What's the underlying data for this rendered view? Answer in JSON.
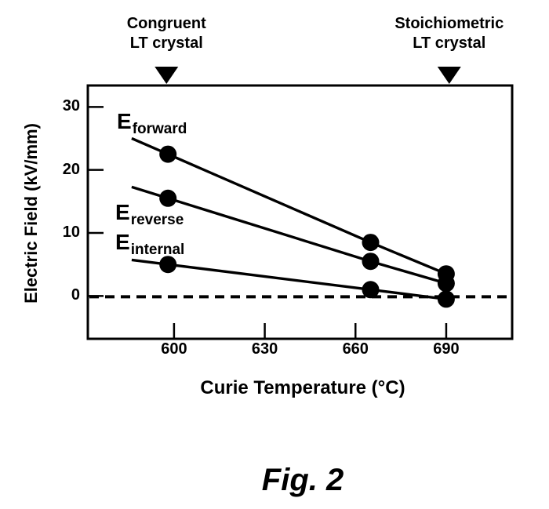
{
  "figure": {
    "caption": "Fig. 2"
  },
  "colors": {
    "foreground": "#000000",
    "background": "#ffffff"
  },
  "annotations": [
    {
      "name": "congruent-lt-crystal",
      "lines": [
        "Congruent",
        "LT crystal"
      ],
      "points_at_celsius": 597.5,
      "marker": "filled-down-triangle"
    },
    {
      "name": "stoichiometric-lt-crystal",
      "lines": [
        "Stoichiometric",
        "LT crystal"
      ],
      "points_at_celsius": 691,
      "marker": "filled-down-triangle"
    }
  ],
  "chart_data": {
    "type": "line",
    "title": "",
    "xlabel": "Curie Temperature (°C)",
    "ylabel": "Electric Field (kV/mm)",
    "x_unit": "°C",
    "y_unit": "kV/mm",
    "x_ticks": [
      600,
      630,
      660,
      690
    ],
    "y_ticks": [
      30,
      20,
      10,
      0
    ],
    "xlim": [
      571.5,
      711.8
    ],
    "ylim": [
      -6.8,
      33.4
    ],
    "grid": false,
    "legend": "inline-labels",
    "line_color": "#000000",
    "marker": "filled-circle",
    "marker_radius_px": 11,
    "line_extends_left_to_celsius": 586,
    "series": [
      {
        "name": "E_forward",
        "label_main": "E",
        "label_sub": "forward",
        "x": [
          598,
          665,
          690
        ],
        "values": [
          22.5,
          8.5,
          3.5
        ]
      },
      {
        "name": "E_reverse",
        "label_main": "E",
        "label_sub": "reverse",
        "x": [
          598,
          665,
          690
        ],
        "values": [
          15.5,
          5.5,
          2.0
        ]
      },
      {
        "name": "E_internal",
        "label_main": "E",
        "label_sub": "internal",
        "x": [
          598,
          665,
          690
        ],
        "values": [
          5.0,
          1.0,
          -0.5
        ]
      }
    ],
    "zero_line": {
      "style": "dashed",
      "value": 0
    }
  }
}
